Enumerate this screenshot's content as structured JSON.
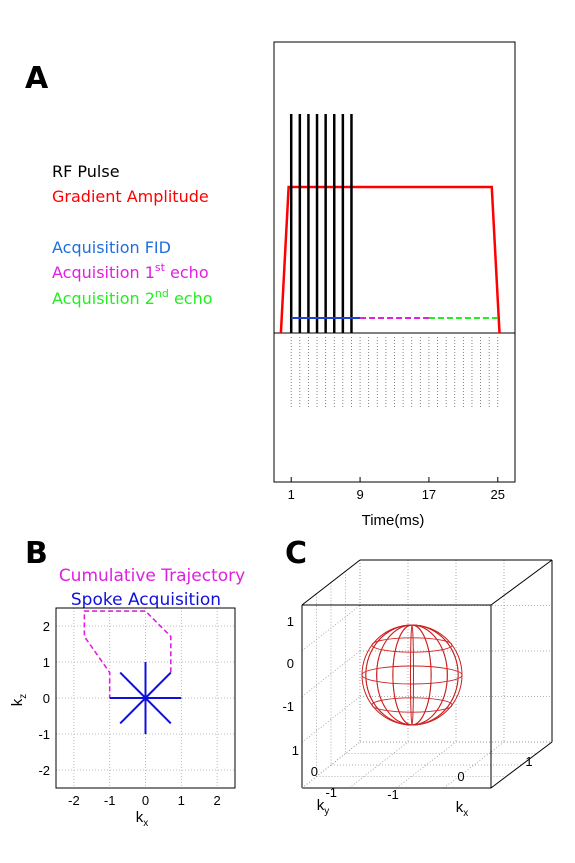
{
  "panels": {
    "a": "A",
    "b": "B",
    "c": "C"
  },
  "legend": [
    {
      "text": "RF Pulse",
      "sup": "",
      "suffix": "",
      "color": "#000000"
    },
    {
      "text": "Gradient Amplitude",
      "sup": "",
      "suffix": "",
      "color": "#ff0000"
    },
    {
      "text": "Acquisition FID",
      "sup": "",
      "suffix": "",
      "color": "#1f6fe0"
    },
    {
      "text": "Acquisition 1",
      "sup": "st",
      "suffix": " echo",
      "color": "#e020e0"
    },
    {
      "text": "Acquisition 2",
      "sup": "nd",
      "suffix": " echo",
      "color": "#22ee22"
    }
  ],
  "chart_data": [
    {
      "type": "line",
      "xlabel": "Time(ms)",
      "x_ticks": [
        1,
        9,
        17,
        25
      ],
      "xlim": [
        -1,
        27
      ],
      "series": [
        {
          "kind": "gradient",
          "color": "#ff0000",
          "x": [
            -0.2,
            0.7,
            24.3,
            25.2
          ],
          "y": [
            0,
            1,
            1,
            0
          ]
        },
        {
          "kind": "rf_pulses",
          "color": "#000000",
          "x": [
            1,
            2,
            3,
            4,
            5,
            6,
            7,
            8
          ]
        },
        {
          "kind": "acq_fid",
          "color": "#1f3fcf",
          "x": [
            1,
            9
          ]
        },
        {
          "kind": "acq_echo1",
          "color": "#e020e0",
          "x": [
            9,
            17
          ]
        },
        {
          "kind": "acq_echo2",
          "color": "#22ee22",
          "x": [
            17,
            25
          ]
        }
      ]
    },
    {
      "type": "line",
      "title": "Cumulative Trajectory",
      "title2": "Spoke Acquisition",
      "title_color": "#e020e0",
      "title2_color": "#1010dd",
      "xlabel": "k",
      "xlabel_sub": "x",
      "ylabel": "k",
      "ylabel_sub": "z",
      "xlim": [
        -2.5,
        2.5
      ],
      "ylim": [
        -2.5,
        2.5
      ],
      "x_ticks": [
        -2,
        -1,
        0,
        1,
        2
      ],
      "y_ticks": [
        2,
        1,
        0,
        -1,
        -2
      ],
      "grid": true,
      "series": [
        {
          "kind": "cumulative",
          "color": "#e020e0",
          "x": [
            -1,
            0,
            0.7071,
            0.7071,
            0,
            -1.7071,
            -1.7071,
            -1,
            -1
          ],
          "y": [
            0,
            0,
            0.7071,
            1.7071,
            2.4142,
            2.4142,
            1.7071,
            0.7071,
            0
          ]
        },
        {
          "kind": "spokes",
          "color": "#1010dd",
          "length": 1,
          "angles_deg": [
            0,
            45,
            90,
            135,
            180,
            225,
            270,
            315
          ]
        }
      ]
    },
    {
      "type": "scatter",
      "xlabel": "k",
      "xlabel_sub": "x",
      "ylabel": "k",
      "ylabel_sub": "y",
      "z_ticks": [
        1,
        0,
        -1
      ],
      "y_ticks": [
        1,
        0,
        -1
      ],
      "x_ticks": [
        -1,
        0,
        1
      ],
      "color": "#cc2222"
    }
  ]
}
